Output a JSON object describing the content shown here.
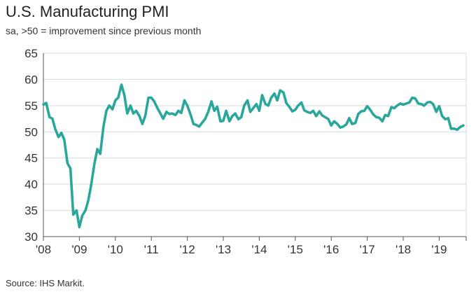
{
  "header": {
    "title": "U.S. Manufacturing PMI",
    "subtitle": "sa, >50 = improvement since previous month"
  },
  "footer": {
    "source": "Source: IHS Markit."
  },
  "colors": {
    "line": "#2aa79b",
    "grid": "#d9d9d9",
    "axis": "#555555"
  },
  "chart_data": {
    "type": "line",
    "title": "U.S. Manufacturing PMI",
    "subtitle": "sa, >50 = improvement since previous month",
    "xlabel": "",
    "ylabel": "",
    "ylim": [
      30,
      65
    ],
    "yticks": [
      30,
      35,
      40,
      45,
      50,
      55,
      60,
      65
    ],
    "xlim": [
      2008.0,
      2019.75
    ],
    "xticks": [
      {
        "label": "'08",
        "value": 2008
      },
      {
        "label": "'09",
        "value": 2009
      },
      {
        "label": "'10",
        "value": 2010
      },
      {
        "label": "'11",
        "value": 2011
      },
      {
        "label": "'12",
        "value": 2012
      },
      {
        "label": "'13",
        "value": 2013
      },
      {
        "label": "'14",
        "value": 2014
      },
      {
        "label": "'15",
        "value": 2015
      },
      {
        "label": "'16",
        "value": 2016
      },
      {
        "label": "'17",
        "value": 2017
      },
      {
        "label": "'18",
        "value": 2018
      },
      {
        "label": "'19",
        "value": 2019
      }
    ],
    "grid": true,
    "series": [
      {
        "name": "U.S. Manufacturing PMI",
        "x": [
          2008.0,
          2008.08,
          2008.17,
          2008.25,
          2008.33,
          2008.42,
          2008.5,
          2008.58,
          2008.67,
          2008.75,
          2008.83,
          2008.92,
          2009.0,
          2009.08,
          2009.17,
          2009.25,
          2009.33,
          2009.42,
          2009.5,
          2009.58,
          2009.67,
          2009.75,
          2009.83,
          2009.92,
          2010.0,
          2010.08,
          2010.17,
          2010.25,
          2010.33,
          2010.42,
          2010.5,
          2010.58,
          2010.67,
          2010.75,
          2010.83,
          2010.92,
          2011.0,
          2011.08,
          2011.17,
          2011.25,
          2011.33,
          2011.42,
          2011.5,
          2011.58,
          2011.67,
          2011.75,
          2011.83,
          2011.92,
          2012.0,
          2012.08,
          2012.17,
          2012.25,
          2012.33,
          2012.42,
          2012.5,
          2012.58,
          2012.67,
          2012.75,
          2012.83,
          2012.92,
          2013.0,
          2013.08,
          2013.17,
          2013.25,
          2013.33,
          2013.42,
          2013.5,
          2013.58,
          2013.67,
          2013.75,
          2013.83,
          2013.92,
          2014.0,
          2014.08,
          2014.17,
          2014.25,
          2014.33,
          2014.42,
          2014.5,
          2014.58,
          2014.67,
          2014.75,
          2014.83,
          2014.92,
          2015.0,
          2015.08,
          2015.17,
          2015.25,
          2015.33,
          2015.42,
          2015.5,
          2015.58,
          2015.67,
          2015.75,
          2015.83,
          2015.92,
          2016.0,
          2016.08,
          2016.17,
          2016.25,
          2016.33,
          2016.42,
          2016.5,
          2016.58,
          2016.67,
          2016.75,
          2016.83,
          2016.92,
          2017.0,
          2017.08,
          2017.17,
          2017.25,
          2017.33,
          2017.42,
          2017.5,
          2017.58,
          2017.67,
          2017.75,
          2017.83,
          2017.92,
          2018.0,
          2018.08,
          2018.17,
          2018.25,
          2018.33,
          2018.42,
          2018.5,
          2018.58,
          2018.67,
          2018.75,
          2018.83,
          2018.92,
          2019.0,
          2019.08,
          2019.17,
          2019.25,
          2019.33,
          2019.42,
          2019.5,
          2019.58,
          2019.67
        ],
        "values": [
          55.2,
          55.5,
          52.8,
          52.5,
          50.5,
          49.0,
          49.8,
          48.5,
          44.0,
          43.0,
          34.2,
          35.0,
          31.8,
          34.0,
          35.0,
          37.0,
          40.0,
          44.0,
          46.7,
          45.8,
          51.0,
          54.0,
          55.0,
          54.3,
          56.0,
          56.5,
          59.0,
          57.0,
          53.5,
          55.0,
          53.5,
          54.0,
          53.0,
          51.5,
          53.0,
          56.5,
          56.5,
          55.8,
          54.5,
          53.5,
          52.5,
          53.8,
          53.4,
          53.5,
          53.2,
          54.0,
          53.6,
          56.0,
          55.0,
          53.5,
          51.5,
          51.3,
          51.0,
          51.8,
          52.5,
          53.8,
          55.8,
          54.0,
          54.8,
          52.0,
          52.1,
          54.0,
          52.0,
          53.0,
          53.5,
          52.4,
          52.8,
          55.0,
          56.0,
          53.8,
          54.5,
          55.3,
          54.0,
          57.0,
          55.3,
          55.0,
          56.5,
          57.3,
          56.0,
          57.9,
          57.5,
          55.5,
          54.8,
          53.9,
          54.2,
          55.0,
          55.6,
          54.1,
          53.8,
          53.6,
          54.0,
          53.0,
          53.9,
          53.1,
          52.8,
          52.4,
          51.2,
          52.0,
          51.5,
          50.8,
          51.0,
          51.4,
          52.6,
          51.5,
          51.7,
          53.4,
          53.9,
          54.0,
          54.9,
          54.2,
          53.3,
          52.8,
          52.7,
          52.0,
          53.2,
          53.0,
          54.7,
          54.5,
          55.0,
          55.4,
          55.2,
          55.4,
          55.6,
          56.5,
          56.4,
          55.4,
          55.3,
          55.0,
          55.6,
          55.7,
          55.3,
          53.8,
          54.9,
          53.0,
          52.4,
          52.6,
          50.6,
          50.6,
          50.4,
          50.9,
          51.2
        ]
      }
    ]
  }
}
